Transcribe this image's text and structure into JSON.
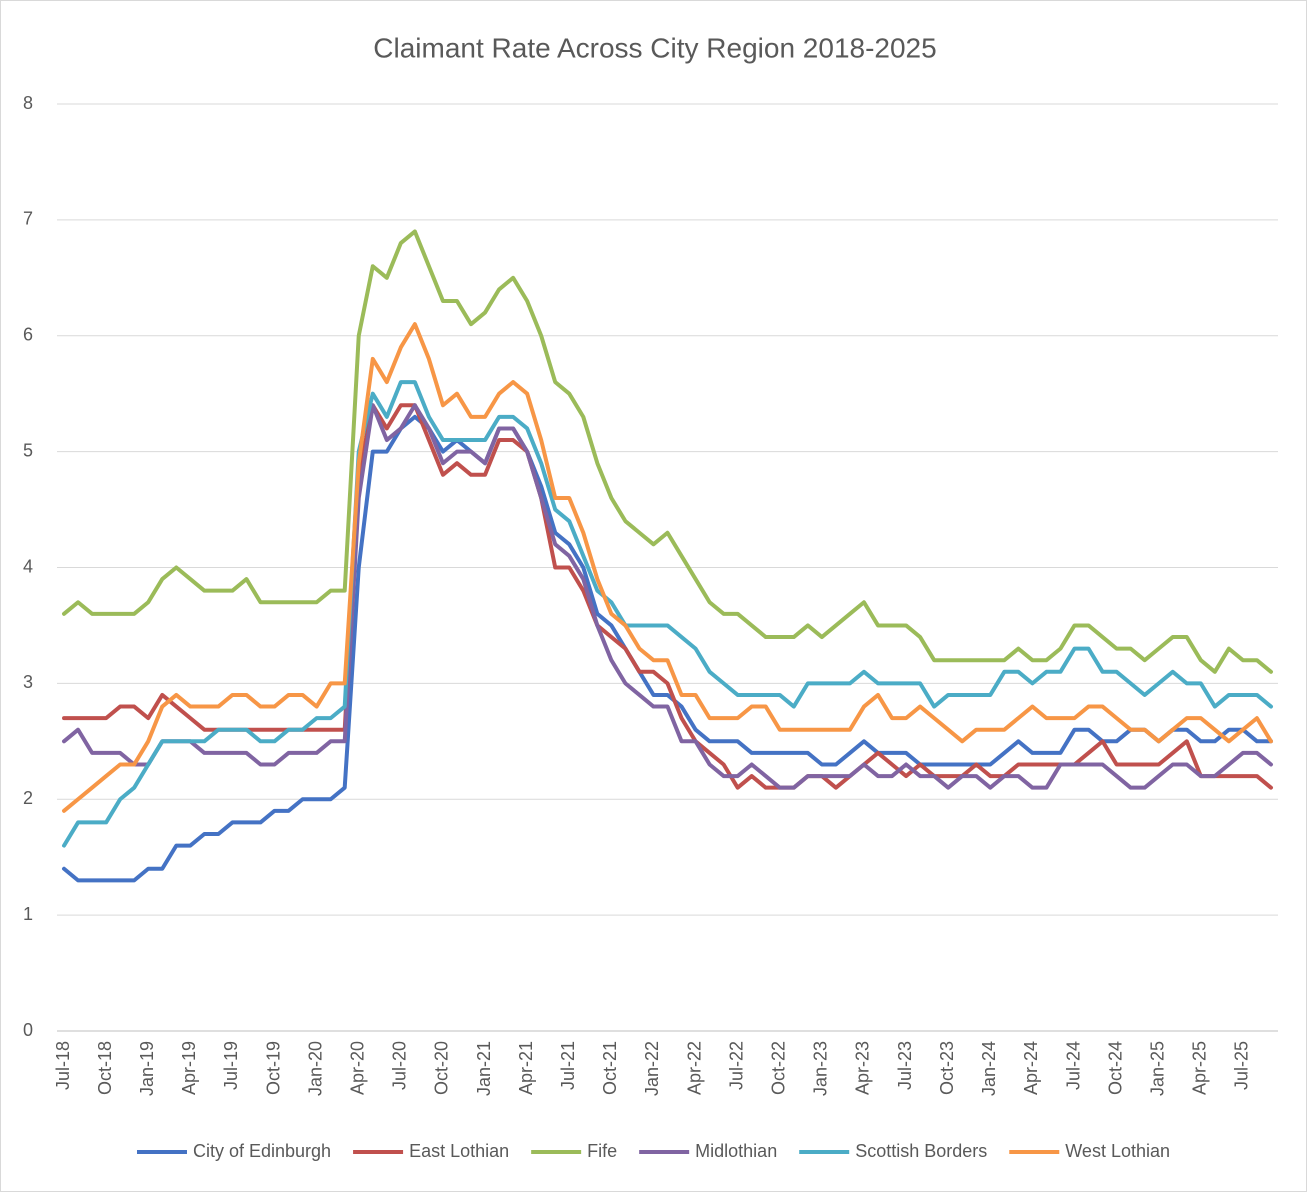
{
  "chart_data": {
    "type": "line",
    "title": "Claimant Rate Across City Region 2018-2025",
    "categories": [
      "Jul-18",
      null,
      null,
      "Oct-18",
      null,
      null,
      "Jan-19",
      null,
      null,
      "Apr-19",
      null,
      null,
      "Jul-19",
      null,
      null,
      "Oct-19",
      null,
      null,
      "Jan-20",
      null,
      null,
      "Apr-20",
      null,
      null,
      "Jul-20",
      null,
      null,
      "Oct-20",
      null,
      null,
      "Jan-21",
      null,
      null,
      "Apr-21",
      null,
      null,
      "Jul-21",
      null,
      null,
      "Oct-21",
      null,
      null,
      "Jan-22",
      null,
      null,
      "Apr-22",
      null,
      null,
      "Jul-22",
      null,
      null,
      "Oct-22",
      null,
      null,
      "Jan-23",
      null,
      null,
      "Apr-23",
      null,
      null,
      "Jul-23",
      null,
      null,
      "Oct-23",
      null,
      null,
      "Jan-24",
      null,
      null,
      "Apr-24",
      null,
      null,
      "Jul-24",
      null,
      null,
      "Oct-24",
      null,
      null,
      "Jan-25",
      null,
      null,
      "Apr-25",
      null,
      null,
      "Jul-25",
      null,
      null
    ],
    "series": [
      {
        "name": "City of Edinburgh",
        "color": "#4472c4",
        "values": [
          1.4,
          1.3,
          1.3,
          1.3,
          1.3,
          1.3,
          1.4,
          1.4,
          1.6,
          1.6,
          1.7,
          1.7,
          1.8,
          1.8,
          1.8,
          1.9,
          1.9,
          2.0,
          2.0,
          2.0,
          2.1,
          4.0,
          5.0,
          5.0,
          5.2,
          5.3,
          5.2,
          5.0,
          5.1,
          5.0,
          4.9,
          5.2,
          5.2,
          5.0,
          4.7,
          4.3,
          4.2,
          4.0,
          3.6,
          3.5,
          3.3,
          3.1,
          2.9,
          2.9,
          2.8,
          2.6,
          2.5,
          2.5,
          2.5,
          2.4,
          2.4,
          2.4,
          2.4,
          2.4,
          2.3,
          2.3,
          2.4,
          2.5,
          2.4,
          2.4,
          2.4,
          2.3,
          2.3,
          2.3,
          2.3,
          2.3,
          2.3,
          2.4,
          2.5,
          2.4,
          2.4,
          2.4,
          2.6,
          2.6,
          2.5,
          2.5,
          2.6,
          2.6,
          2.5,
          2.6,
          2.6,
          2.5,
          2.5,
          2.6,
          2.6,
          2.5,
          2.5
        ]
      },
      {
        "name": "East Lothian",
        "color": "#c0504d",
        "values": [
          2.7,
          2.7,
          2.7,
          2.7,
          2.8,
          2.8,
          2.7,
          2.9,
          2.8,
          2.7,
          2.6,
          2.6,
          2.6,
          2.6,
          2.6,
          2.6,
          2.6,
          2.6,
          2.6,
          2.6,
          2.6,
          4.8,
          5.4,
          5.2,
          5.4,
          5.4,
          5.1,
          4.8,
          4.9,
          4.8,
          4.8,
          5.1,
          5.1,
          5.0,
          4.6,
          4.0,
          4.0,
          3.8,
          3.5,
          3.4,
          3.3,
          3.1,
          3.1,
          3.0,
          2.7,
          2.5,
          2.4,
          2.3,
          2.1,
          2.2,
          2.1,
          2.1,
          2.1,
          2.2,
          2.2,
          2.1,
          2.2,
          2.3,
          2.4,
          2.3,
          2.2,
          2.3,
          2.2,
          2.2,
          2.2,
          2.3,
          2.2,
          2.2,
          2.3,
          2.3,
          2.3,
          2.3,
          2.3,
          2.4,
          2.5,
          2.3,
          2.3,
          2.3,
          2.3,
          2.4,
          2.5,
          2.2,
          2.2,
          2.2,
          2.2,
          2.2,
          2.1
        ]
      },
      {
        "name": "Fife",
        "color": "#9bbb59",
        "values": [
          3.6,
          3.7,
          3.6,
          3.6,
          3.6,
          3.6,
          3.7,
          3.9,
          4.0,
          3.9,
          3.8,
          3.8,
          3.8,
          3.9,
          3.7,
          3.7,
          3.7,
          3.7,
          3.7,
          3.8,
          3.8,
          6.0,
          6.6,
          6.5,
          6.8,
          6.9,
          6.6,
          6.3,
          6.3,
          6.1,
          6.2,
          6.4,
          6.5,
          6.3,
          6.0,
          5.6,
          5.5,
          5.3,
          4.9,
          4.6,
          4.4,
          4.3,
          4.2,
          4.3,
          4.1,
          3.9,
          3.7,
          3.6,
          3.6,
          3.5,
          3.4,
          3.4,
          3.4,
          3.5,
          3.4,
          3.5,
          3.6,
          3.7,
          3.5,
          3.5,
          3.5,
          3.4,
          3.2,
          3.2,
          3.2,
          3.2,
          3.2,
          3.2,
          3.3,
          3.2,
          3.2,
          3.3,
          3.5,
          3.5,
          3.4,
          3.3,
          3.3,
          3.2,
          3.3,
          3.4,
          3.4,
          3.2,
          3.1,
          3.3,
          3.2,
          3.2,
          3.1
        ]
      },
      {
        "name": "Midlothian",
        "color": "#8064a2",
        "values": [
          2.5,
          2.6,
          2.4,
          2.4,
          2.4,
          2.3,
          2.3,
          2.5,
          2.5,
          2.5,
          2.4,
          2.4,
          2.4,
          2.4,
          2.3,
          2.3,
          2.4,
          2.4,
          2.4,
          2.5,
          2.5,
          4.6,
          5.4,
          5.1,
          5.2,
          5.4,
          5.2,
          4.9,
          5.0,
          5.0,
          4.9,
          5.2,
          5.2,
          5.0,
          4.6,
          4.2,
          4.1,
          3.9,
          3.5,
          3.2,
          3.0,
          2.9,
          2.8,
          2.8,
          2.5,
          2.5,
          2.3,
          2.2,
          2.2,
          2.3,
          2.2,
          2.1,
          2.1,
          2.2,
          2.2,
          2.2,
          2.2,
          2.3,
          2.2,
          2.2,
          2.3,
          2.2,
          2.2,
          2.1,
          2.2,
          2.2,
          2.1,
          2.2,
          2.2,
          2.1,
          2.1,
          2.3,
          2.3,
          2.3,
          2.3,
          2.2,
          2.1,
          2.1,
          2.2,
          2.3,
          2.3,
          2.2,
          2.2,
          2.3,
          2.4,
          2.4,
          2.3
        ]
      },
      {
        "name": "Scottish Borders",
        "color": "#4bacc6",
        "values": [
          1.6,
          1.8,
          1.8,
          1.8,
          2.0,
          2.1,
          2.3,
          2.5,
          2.5,
          2.5,
          2.5,
          2.6,
          2.6,
          2.6,
          2.5,
          2.5,
          2.6,
          2.6,
          2.7,
          2.7,
          2.8,
          5.0,
          5.5,
          5.3,
          5.6,
          5.6,
          5.3,
          5.1,
          5.1,
          5.1,
          5.1,
          5.3,
          5.3,
          5.2,
          4.9,
          4.5,
          4.4,
          4.1,
          3.8,
          3.7,
          3.5,
          3.5,
          3.5,
          3.5,
          3.4,
          3.3,
          3.1,
          3.0,
          2.9,
          2.9,
          2.9,
          2.9,
          2.8,
          3.0,
          3.0,
          3.0,
          3.0,
          3.1,
          3.0,
          3.0,
          3.0,
          3.0,
          2.8,
          2.9,
          2.9,
          2.9,
          2.9,
          3.1,
          3.1,
          3.0,
          3.1,
          3.1,
          3.3,
          3.3,
          3.1,
          3.1,
          3.0,
          2.9,
          3.0,
          3.1,
          3.0,
          3.0,
          2.8,
          2.9,
          2.9,
          2.9,
          2.8
        ]
      },
      {
        "name": "West Lothian",
        "color": "#f79646",
        "values": [
          1.9,
          2.0,
          2.1,
          2.2,
          2.3,
          2.3,
          2.5,
          2.8,
          2.9,
          2.8,
          2.8,
          2.8,
          2.9,
          2.9,
          2.8,
          2.8,
          2.9,
          2.9,
          2.8,
          3.0,
          3.0,
          4.9,
          5.8,
          5.6,
          5.9,
          6.1,
          5.8,
          5.4,
          5.5,
          5.3,
          5.3,
          5.5,
          5.6,
          5.5,
          5.1,
          4.6,
          4.6,
          4.3,
          3.9,
          3.6,
          3.5,
          3.3,
          3.2,
          3.2,
          2.9,
          2.9,
          2.7,
          2.7,
          2.7,
          2.8,
          2.8,
          2.6,
          2.6,
          2.6,
          2.6,
          2.6,
          2.6,
          2.8,
          2.9,
          2.7,
          2.7,
          2.8,
          2.7,
          2.6,
          2.5,
          2.6,
          2.6,
          2.6,
          2.7,
          2.8,
          2.7,
          2.7,
          2.7,
          2.8,
          2.8,
          2.7,
          2.6,
          2.6,
          2.5,
          2.6,
          2.7,
          2.7,
          2.6,
          2.5,
          2.6,
          2.7,
          2.5
        ]
      }
    ],
    "ylim": [
      0,
      8
    ],
    "yticks": [
      0,
      1,
      2,
      3,
      4,
      5,
      6,
      7,
      8
    ],
    "grid": true,
    "legend": "bottom"
  }
}
